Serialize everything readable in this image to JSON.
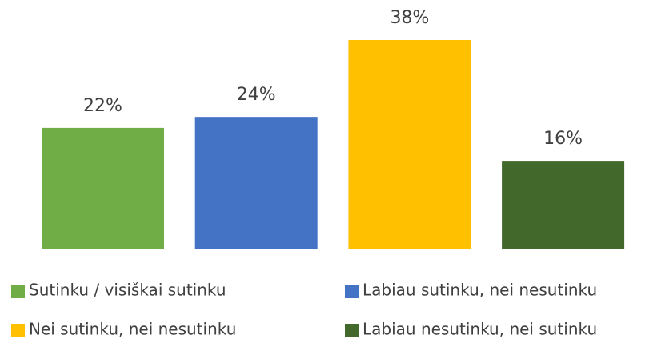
{
  "chart_data": {
    "type": "bar",
    "series": [
      {
        "name": "Sutinku / visiškai sutinku",
        "color": "#70ad47",
        "values": [
          22
        ],
        "value_labels": [
          "22%"
        ]
      },
      {
        "name": "Labiau sutinku, nei nesutinku",
        "color": "#4472c4",
        "values": [
          24
        ],
        "value_labels": [
          "24%"
        ]
      },
      {
        "name": "Nei sutinku, nei nesutinku",
        "color": "#ffc000",
        "values": [
          38
        ],
        "value_labels": [
          "38%"
        ]
      },
      {
        "name": "Labiau nesutinku, nei sutinku",
        "color": "#43682b",
        "values": [
          16
        ],
        "value_labels": [
          "16%"
        ]
      }
    ],
    "legend": "bottom"
  }
}
